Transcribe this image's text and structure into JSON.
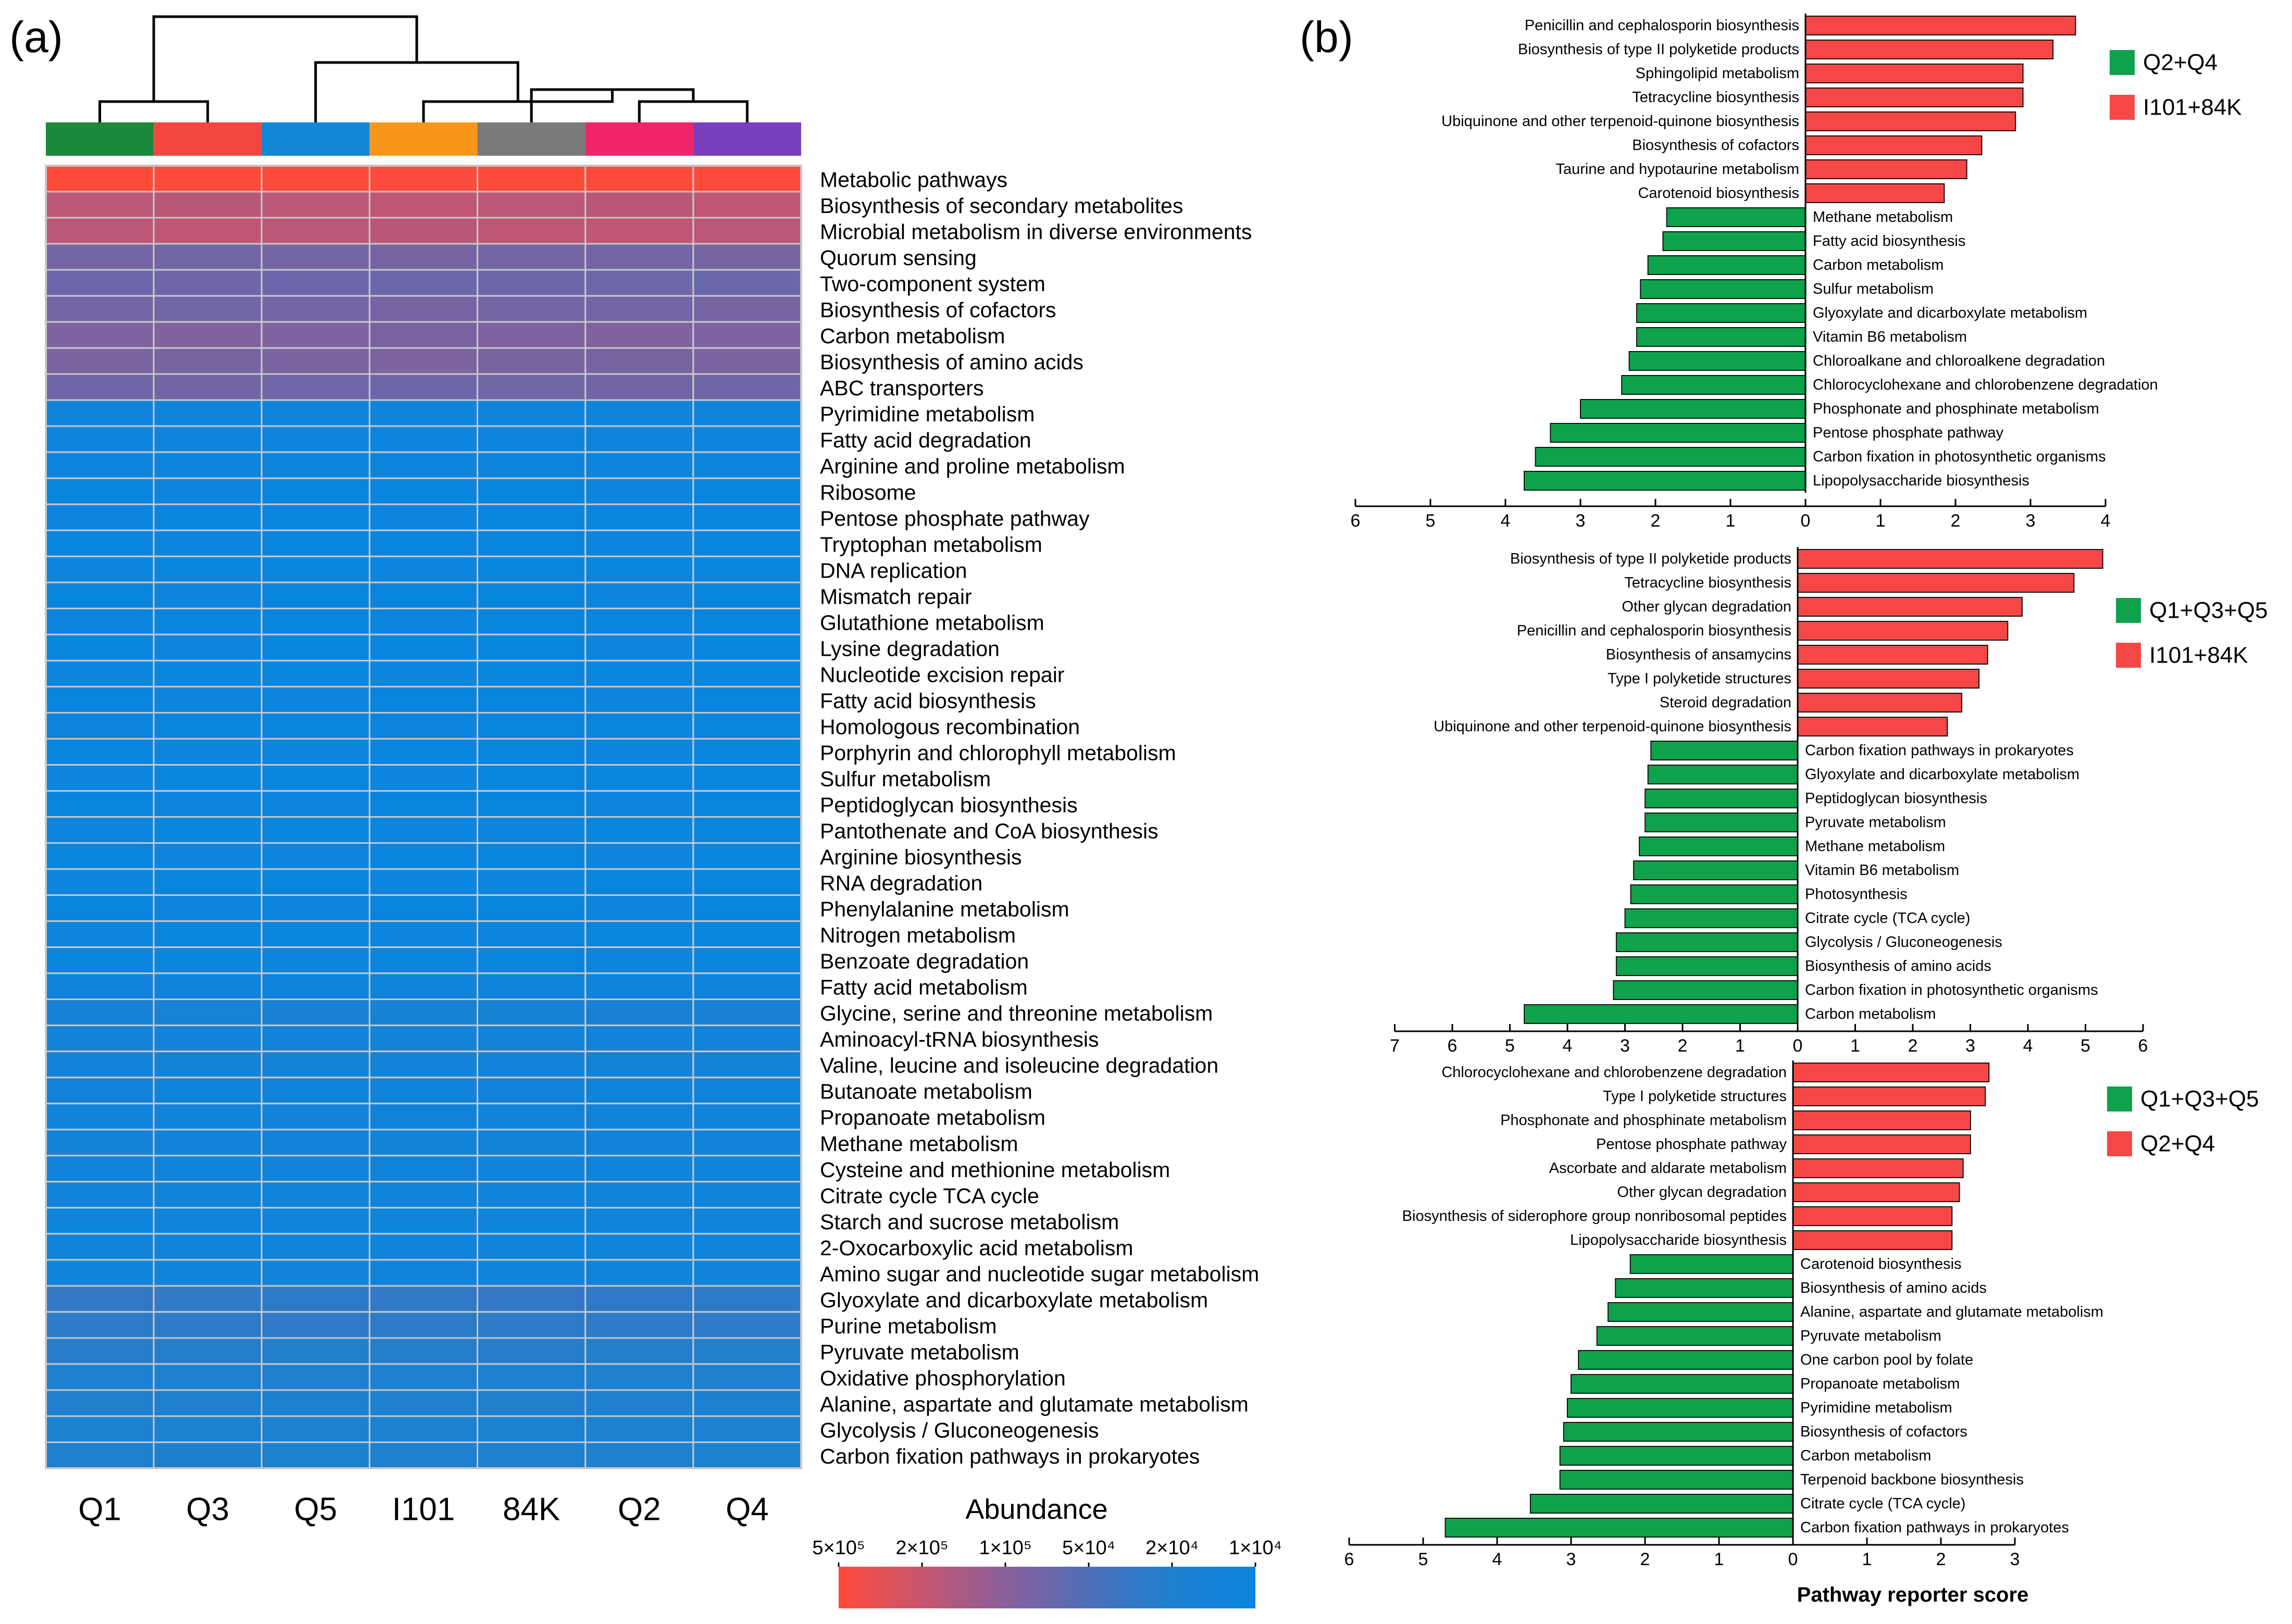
{
  "chart_data": [
    {
      "type": "heatmap",
      "panel_label": "(a)",
      "samples": [
        "Q1",
        "Q3",
        "Q5",
        "I101",
        "84K",
        "Q2",
        "Q4"
      ],
      "sample_colors": [
        "#1a8a3a",
        "#f2473e",
        "#1187d6",
        "#f7971a",
        "#7a7a7a",
        "#f0246a",
        "#7a3fbe"
      ],
      "pathways": [
        "Metabolic pathways",
        "Biosynthesis of secondary metabolites",
        "Microbial metabolism in diverse environments",
        "Quorum sensing",
        "Two-component system",
        "Biosynthesis of cofactors",
        "Carbon metabolism",
        "Biosynthesis of amino acids",
        "ABC transporters",
        "Pyrimidine metabolism",
        "Fatty acid degradation",
        "Arginine and proline metabolism",
        "Ribosome",
        "Pentose phosphate pathway",
        "Tryptophan metabolism",
        "DNA replication",
        "Mismatch repair",
        "Glutathione metabolism",
        "Lysine degradation",
        "Nucleotide excision repair",
        "Fatty acid biosynthesis",
        "Homologous recombination",
        "Porphyrin and chlorophyll metabolism",
        "Sulfur metabolism",
        "Peptidoglycan biosynthesis",
        "Pantothenate and CoA biosynthesis",
        "Arginine biosynthesis",
        "RNA degradation",
        "Phenylalanine metabolism",
        "Nitrogen metabolism",
        "Benzoate degradation",
        "Fatty acid metabolism",
        "Glycine, serine and threonine metabolism",
        "Aminoacyl-tRNA biosynthesis",
        "Valine, leucine and isoleucine degradation",
        "Butanoate metabolism",
        "Propanoate metabolism",
        "Methane metabolism",
        "Cysteine and methionine metabolism",
        "Citrate cycle TCA cycle",
        "Starch and sucrose metabolism",
        "2-Oxocarboxylic acid metabolism",
        "Amino sugar and nucleotide sugar metabolism",
        "Glyoxylate and dicarboxylate metabolism",
        "Purine metabolism",
        "Pyruvate metabolism",
        "Oxidative phosphorylation",
        "Alanine, aspartate and glutamate metabolism",
        "Glycolysis / Gluconeogenesis",
        "Carbon fixation pathways in prokaryotes"
      ],
      "row_abundance": [
        500000,
        200000,
        200000,
        80000,
        70000,
        80000,
        90000,
        85000,
        75000,
        12000,
        11000,
        11000,
        10000,
        10000,
        10000,
        10000,
        10000,
        10000,
        10000,
        10000,
        10000,
        10000,
        10000,
        10000,
        10000,
        10000,
        10000,
        10000,
        10000,
        10000,
        10000,
        12000,
        17000,
        14000,
        14000,
        13000,
        13000,
        14000,
        13000,
        12000,
        12000,
        12000,
        13000,
        30000,
        28000,
        24000,
        22000,
        22000,
        20000,
        20000
      ],
      "colorbar": {
        "title": "Abundance",
        "ticks": [
          "5×10⁵",
          "2×10⁵",
          "1×10⁵",
          "5×10⁴",
          "2×10⁴",
          "1×10⁴"
        ],
        "colors": [
          "#ff4a3a",
          "#c75570",
          "#8a609a",
          "#4e6eb8",
          "#1e80cf",
          "#0a85de"
        ]
      },
      "dendrogram": "((Q1,Q3),(Q5,((I101,(84K,(Q2,Q4))))))"
    },
    {
      "type": "bar",
      "orientation": "horizontal",
      "panel_label": "(b)",
      "subpanel": 1,
      "legend": [
        {
          "name": "Q2+Q4",
          "color": "#0ea34a"
        },
        {
          "name": "I101+84K",
          "color": "#f64747"
        }
      ],
      "xlim": [
        -6,
        4
      ],
      "xticks": [
        "6",
        "5",
        "4",
        "3",
        "2",
        "1",
        "0",
        "1",
        "2",
        "3",
        "4"
      ],
      "positive": {
        "group": "I101+84K",
        "categories": [
          "Penicillin and cephalosporin biosynthesis",
          "Biosynthesis of type II polyketide products",
          "Sphingolipid metabolism",
          "Tetracycline biosynthesis",
          "Ubiquinone and other terpenoid-quinone biosynthesis",
          "Biosynthesis of cofactors",
          "Taurine and hypotaurine metabolism",
          "Carotenoid biosynthesis"
        ],
        "values": [
          3.6,
          3.3,
          2.9,
          2.9,
          2.8,
          2.35,
          2.15,
          1.85
        ]
      },
      "negative": {
        "group": "Q2+Q4",
        "categories": [
          "Methane metabolism",
          "Fatty acid biosynthesis",
          "Carbon metabolism",
          "Sulfur metabolism",
          "Glyoxylate and dicarboxylate metabolism",
          "Vitamin B6 metabolism",
          "Chloroalkane and chloroalkene degradation",
          "Chlorocyclohexane and chlorobenzene degradation",
          "Phosphonate and phosphinate metabolism",
          "Pentose phosphate pathway",
          "Carbon fixation in photosynthetic organisms",
          "Lipopolysaccharide biosynthesis"
        ],
        "values": [
          -1.85,
          -1.9,
          -2.1,
          -2.2,
          -2.25,
          -2.25,
          -2.35,
          -2.45,
          -3.0,
          -3.4,
          -3.6,
          -3.75
        ]
      }
    },
    {
      "type": "bar",
      "orientation": "horizontal",
      "subpanel": 2,
      "legend": [
        {
          "name": "Q1+Q3+Q5",
          "color": "#0ea34a"
        },
        {
          "name": "I101+84K",
          "color": "#f64747"
        }
      ],
      "xlim": [
        -7,
        6
      ],
      "xticks": [
        "7",
        "6",
        "5",
        "4",
        "3",
        "2",
        "1",
        "0",
        "1",
        "2",
        "3",
        "4",
        "5",
        "6"
      ],
      "positive": {
        "group": "I101+84K",
        "categories": [
          "Biosynthesis of type II polyketide products",
          "Tetracycline biosynthesis",
          "Other glycan degradation",
          "Penicillin and cephalosporin biosynthesis",
          "Biosynthesis of ansamycins",
          "Type I polyketide structures",
          "Steroid degradation",
          "Ubiquinone and other terpenoid-quinone biosynthesis"
        ],
        "values": [
          5.3,
          4.8,
          3.9,
          3.65,
          3.3,
          3.15,
          2.85,
          2.6
        ]
      },
      "negative": {
        "group": "Q1+Q3+Q5",
        "categories": [
          "Carbon fixation pathways in prokaryotes",
          "Glyoxylate and dicarboxylate metabolism",
          "Peptidoglycan biosynthesis",
          "Pyruvate metabolism",
          "Methane metabolism",
          "Vitamin B6 metabolism",
          "Photosynthesis",
          "Citrate cycle (TCA cycle)",
          "Glycolysis / Gluconeogenesis",
          "Biosynthesis of amino acids",
          "Carbon fixation in photosynthetic organisms",
          "Carbon metabolism"
        ],
        "values": [
          -2.55,
          -2.6,
          -2.65,
          -2.65,
          -2.75,
          -2.85,
          -2.9,
          -3.0,
          -3.15,
          -3.15,
          -3.2,
          -4.75
        ]
      }
    },
    {
      "type": "bar",
      "orientation": "horizontal",
      "subpanel": 3,
      "legend": [
        {
          "name": "Q1+Q3+Q5",
          "color": "#0ea34a"
        },
        {
          "name": "Q2+Q4",
          "color": "#f64747"
        }
      ],
      "xlim": [
        -6,
        3
      ],
      "xticks": [
        "6",
        "5",
        "4",
        "3",
        "2",
        "1",
        "0",
        "1",
        "2",
        "3"
      ],
      "xlabel": "Pathway reporter score",
      "positive": {
        "group": "Q2+Q4",
        "categories": [
          "Chlorocyclohexane and chlorobenzene degradation",
          "Type I polyketide structures",
          "Phosphonate and phosphinate metabolism",
          "Pentose phosphate pathway",
          "Ascorbate and aldarate metabolism",
          "Other glycan degradation",
          "Biosynthesis of siderophore group nonribosomal peptides",
          "Lipopolysaccharide biosynthesis"
        ],
        "values": [
          2.65,
          2.6,
          2.4,
          2.4,
          2.3,
          2.25,
          2.15,
          2.15
        ]
      },
      "negative": {
        "group": "Q1+Q3+Q5",
        "categories": [
          "Carotenoid biosynthesis",
          "Biosynthesis of amino acids",
          "Alanine, aspartate and glutamate metabolism",
          "Pyruvate metabolism",
          "One carbon pool by folate",
          "Propanoate metabolism",
          "Pyrimidine metabolism",
          "Biosynthesis of cofactors",
          "Carbon metabolism",
          "Terpenoid backbone biosynthesis",
          "Citrate cycle (TCA cycle)",
          "Carbon fixation pathways in prokaryotes"
        ],
        "values": [
          -2.2,
          -2.4,
          -2.5,
          -2.65,
          -2.9,
          -3.0,
          -3.05,
          -3.1,
          -3.15,
          -3.15,
          -3.55,
          -4.7
        ]
      }
    }
  ]
}
